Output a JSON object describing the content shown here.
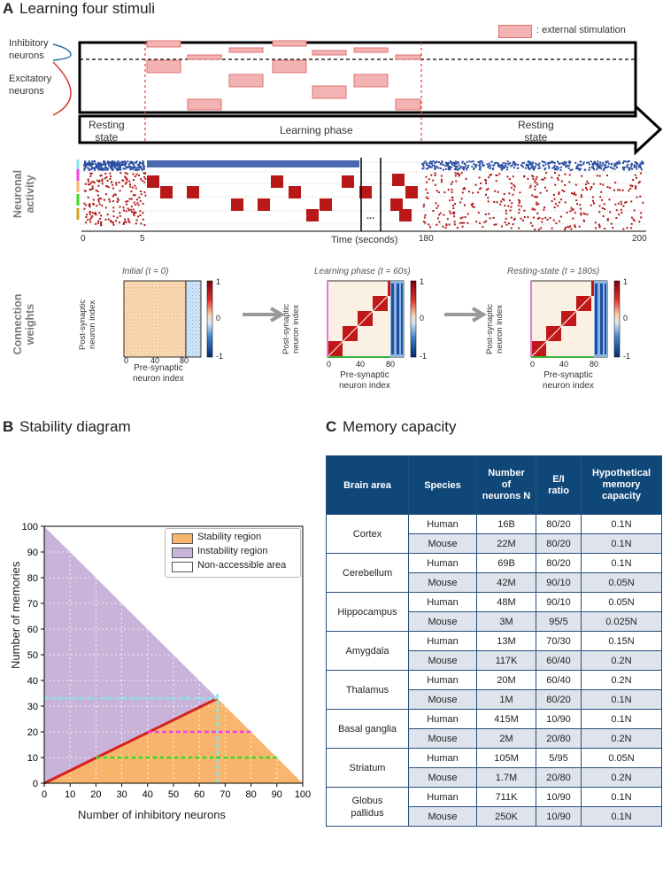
{
  "panelA": {
    "letter": "A",
    "title": "Learning four stimuli",
    "legend": ": external stimulation",
    "inhibitory": "Inhibitory\nneurons",
    "excitatory": "Excitatory\nneurons",
    "phase_resting1": "Resting\nstate",
    "phase_learning": "Learning phase",
    "phase_resting2": "Resting\nstate",
    "activity_label": "Neuronal\nactivity",
    "time_label": "Time (seconds)",
    "time_ticks": [
      "0",
      "5",
      "180",
      "200"
    ],
    "ellipsis": "...",
    "weights_label": "Connection\nweights",
    "matrices": [
      {
        "title": "Initial (t = 0)"
      },
      {
        "title": "Learning phase (t = 60s)"
      },
      {
        "title": "Resting-state (t = 180s)"
      }
    ],
    "matrix_x_label": "Pre-synaptic\nneuron index",
    "matrix_y_label": "Post-synaptic\nneuron index",
    "matrix_ticks": [
      "0",
      "40",
      "80"
    ],
    "colorbar_ticks": [
      "1",
      "0",
      "-1"
    ]
  },
  "panelB": {
    "letter": "B",
    "title": "Stability diagram",
    "colors": {
      "stability": "#f9b56d",
      "instability": "#c9b3d9",
      "line": "#d62020",
      "cyan": "#7ee8ea",
      "magenta": "#f040e0",
      "green": "#3fd820"
    }
  },
  "panelC": {
    "letter": "C",
    "title": "Memory capacity",
    "headers": [
      "Brain area",
      "Species",
      "Number\nof\nneurons N",
      "E/I\nratio",
      "Hypothetical\nmemory\ncapacity"
    ],
    "rows": [
      {
        "area": "Cortex",
        "human": [
          "16B",
          "80/20",
          "0.1N"
        ],
        "mouse": [
          "22M",
          "80/20",
          "0.1N"
        ]
      },
      {
        "area": "Cerebellum",
        "human": [
          "69B",
          "80/20",
          "0.1N"
        ],
        "mouse": [
          "42M",
          "90/10",
          "0.05N"
        ]
      },
      {
        "area": "Hippocampus",
        "human": [
          "48M",
          "90/10",
          "0.05N"
        ],
        "mouse": [
          "3M",
          "95/5",
          "0.025N"
        ]
      },
      {
        "area": "Amygdala",
        "human": [
          "13M",
          "70/30",
          "0.15N"
        ],
        "mouse": [
          "117K",
          "60/40",
          "0.2N"
        ]
      },
      {
        "area": "Thalamus",
        "human": [
          "20M",
          "60/40",
          "0.2N"
        ],
        "mouse": [
          "1M",
          "80/20",
          "0.1N"
        ]
      },
      {
        "area": "Basal ganglia",
        "human": [
          "415M",
          "10/90",
          "0.1N"
        ],
        "mouse": [
          "2M",
          "20/80",
          "0.2N"
        ]
      },
      {
        "area": "Striatum",
        "human": [
          "105M",
          "5/95",
          "0.05N"
        ],
        "mouse": [
          "1.7M",
          "20/80",
          "0.2N"
        ]
      },
      {
        "area": "Globus\npallidus",
        "human": [
          "711K",
          "10/90",
          "0.1N"
        ],
        "mouse": [
          "250K",
          "10/90",
          "0.1N"
        ]
      }
    ],
    "species": [
      "Human",
      "Mouse"
    ]
  },
  "chart_data": {
    "type": "area",
    "title": "",
    "xlabel": "Number of inhibitory neurons",
    "ylabel": "Number of memories",
    "xlim": [
      0,
      100
    ],
    "ylim": [
      0,
      100
    ],
    "xticks": [
      0,
      10,
      20,
      30,
      40,
      50,
      60,
      70,
      80,
      90,
      100
    ],
    "yticks": [
      0,
      10,
      20,
      30,
      40,
      50,
      60,
      70,
      80,
      90,
      100
    ],
    "grid": true,
    "legend_position": "top-right",
    "legend": [
      "Stability region",
      "Instability region",
      "Non-accessible area"
    ],
    "boundary": {
      "x": [
        0,
        100
      ],
      "y": [
        100,
        0
      ]
    },
    "stability_line": {
      "x": [
        0,
        67
      ],
      "y": [
        0,
        33
      ]
    },
    "guides": [
      {
        "color": "cyan",
        "y": 33,
        "x_to": 67,
        "vertical_x": 67
      },
      {
        "color": "magenta",
        "y": 20,
        "x_from": 40,
        "x_to": 80
      },
      {
        "color": "green",
        "y": 10,
        "x_from": 20,
        "x_to": 90
      }
    ]
  }
}
